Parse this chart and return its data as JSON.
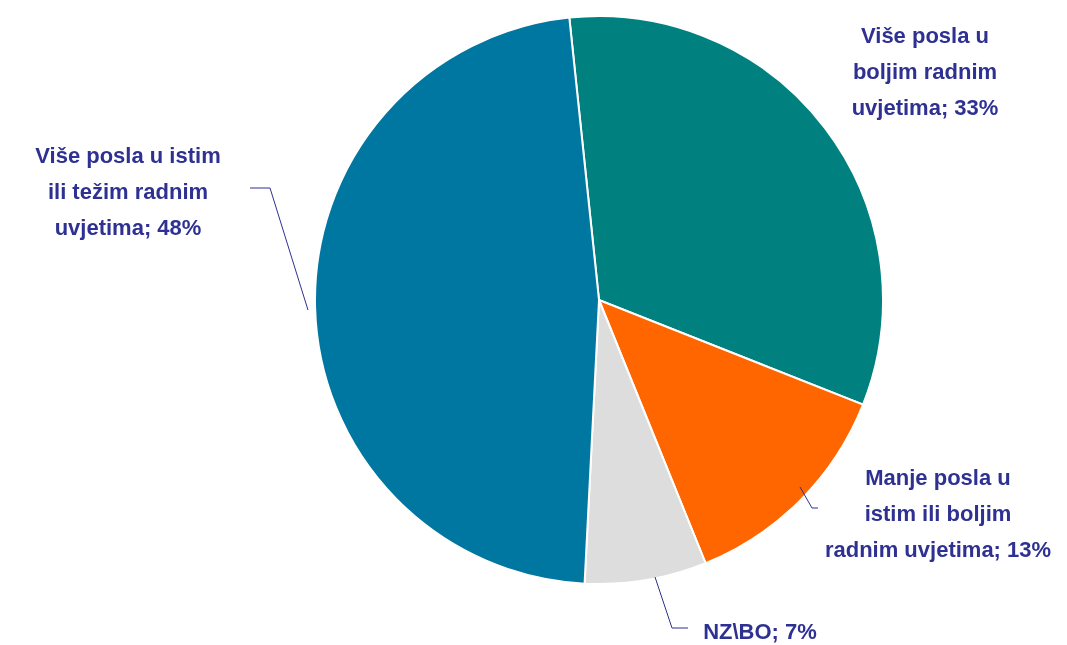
{
  "chart_data": {
    "type": "pie",
    "categories": [
      "Više posla u boljim radnim uvjetima",
      "Manje posla u istim ili boljim radnim uvjetima",
      "NZ\\BO",
      "Više posla u istim ili težim radnim uvjetima"
    ],
    "values": [
      33,
      13,
      7,
      48
    ],
    "value_labels": [
      "33%",
      "13%",
      "7%",
      "48%"
    ],
    "colors": [
      "#00807f",
      "#ff6600",
      "#dddddd",
      "#0077a0"
    ]
  }
}
